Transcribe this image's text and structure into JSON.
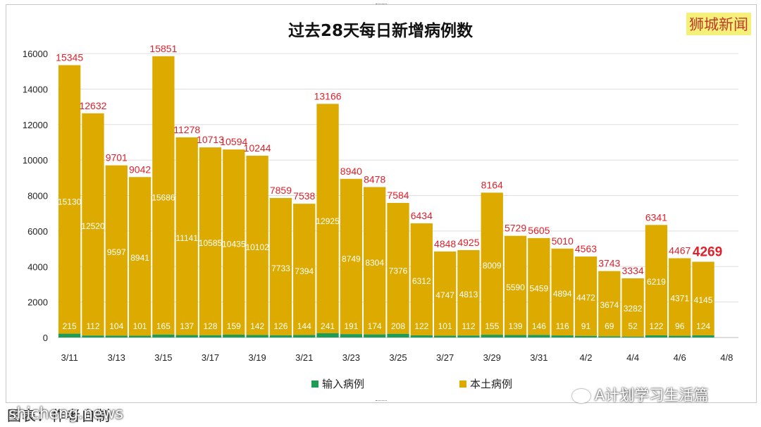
{
  "brand_label": "狮城新闻",
  "watermark": {
    "caption": "图表：作者自制",
    "site": "shicheng.news",
    "account": "A计划学习生活篇"
  },
  "colors": {
    "local": "#DDAA00",
    "imported": "#1E9C56",
    "label": "#E0202A",
    "grid": "#DDDDDD"
  },
  "chart_data": {
    "type": "bar",
    "stacked": true,
    "title": "过去28天每日新增病例数",
    "xlabel": "",
    "ylabel": "",
    "ylim": [
      0,
      16000
    ],
    "yticks": [
      0,
      2000,
      4000,
      6000,
      8000,
      10000,
      12000,
      14000,
      16000
    ],
    "grid": true,
    "legend_position": "bottom",
    "categories": [
      "3/11",
      "3/12",
      "3/13",
      "3/14",
      "3/15",
      "3/16",
      "3/17",
      "3/18",
      "3/19",
      "3/20",
      "3/21",
      "3/22",
      "3/23",
      "3/24",
      "3/25",
      "3/26",
      "3/27",
      "3/28",
      "3/29",
      "3/30",
      "3/31",
      "4/1",
      "4/2",
      "4/3",
      "4/4",
      "4/5",
      "4/6",
      "4/7",
      "4/8"
    ],
    "tick_labels": [
      "3/11",
      "3/13",
      "3/15",
      "3/17",
      "3/19",
      "3/21",
      "3/23",
      "3/25",
      "3/27",
      "3/29",
      "3/31",
      "4/2",
      "4/4",
      "4/6",
      "4/8"
    ],
    "series": [
      {
        "name": "输入病例",
        "values": [
          215,
          112,
          104,
          101,
          165,
          137,
          128,
          159,
          142,
          126,
          144,
          241,
          191,
          174,
          208,
          122,
          101,
          112,
          155,
          139,
          146,
          116,
          91,
          69,
          52,
          122,
          96,
          124,
          null
        ]
      },
      {
        "name": "本土病例",
        "values": [
          15130,
          12520,
          9597,
          8941,
          15686,
          11141,
          10585,
          10435,
          10102,
          7733,
          7394,
          12925,
          8749,
          8304,
          7376,
          6312,
          4747,
          4813,
          8009,
          5590,
          5459,
          4894,
          4472,
          3674,
          3282,
          6219,
          4371,
          4145,
          null
        ]
      }
    ],
    "totals": [
      15345,
      12632,
      9701,
      9042,
      15851,
      11278,
      10713,
      10594,
      10244,
      7859,
      7538,
      13166,
      8940,
      8478,
      7584,
      6434,
      4848,
      4925,
      8164,
      5729,
      5605,
      5010,
      4563,
      3743,
      3334,
      6341,
      4467,
      4269,
      null
    ]
  }
}
